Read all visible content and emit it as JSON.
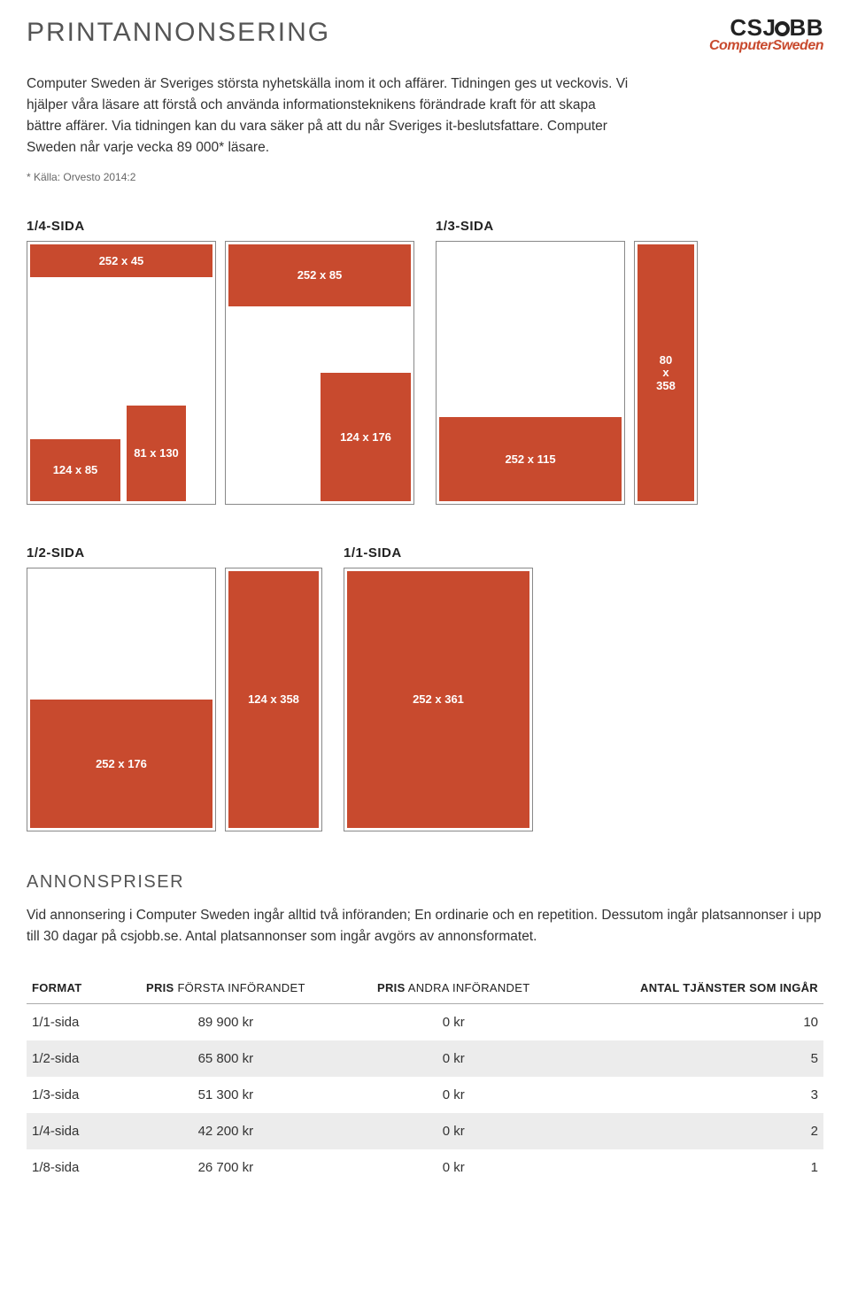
{
  "header": {
    "title": "PRINTANNONSERING",
    "logo_main": "CSJOBB",
    "logo_sub": "ComputerSweden"
  },
  "intro": {
    "p1": "Computer Sweden är Sveriges största nyhetskälla inom it och affärer. Tidningen ges ut veckovis. Vi hjälper våra läsare att förstå och använda informationsteknikens förändrade kraft för att skapa bättre affärer. Via tidningen kan du vara säker på att du når Sveriges it-beslutsfattare. Computer Sweden når varje vecka 89 000* läsare.",
    "footnote": "* Källa: Orvesto 2014:2"
  },
  "colors": {
    "block": "#c84a2e",
    "panel_border": "#888888",
    "zebra": "#ececec"
  },
  "sections": {
    "s14": {
      "label": "1/4-SIDA"
    },
    "s13": {
      "label": "1/3-SIDA"
    },
    "s12": {
      "label": "1/2-SIDA"
    },
    "s11": {
      "label": "1/1-SIDA"
    }
  },
  "blocks": {
    "b252x45": "252 x 45",
    "b252x85": "252 x 85",
    "b124x85": "124 x 85",
    "b81x130": "81 x 130",
    "b124x176": "124 x 176",
    "b252x115": "252 x 115",
    "b80x358": "80\nx\n358",
    "b252x176": "252 x 176",
    "b124x358": "124 x 358",
    "b252x361": "252 x 361"
  },
  "prices_section": {
    "title": "ANNONSPRISER",
    "desc": "Vid annonsering i Computer Sweden ingår alltid två införanden; En ordinarie och en repetition. Dessutom ingår platsannonser i upp till 30 dagar på csjobb.se. Antal platsannonser som ingår avgörs av annonsformatet."
  },
  "table": {
    "headers": {
      "format_strong": "FORMAT",
      "pris1_strong": "PRIS",
      "pris1_light": " FÖRSTA INFÖRANDET",
      "pris2_strong": "PRIS",
      "pris2_light": " ANDRA INFÖRANDET",
      "antal_strong": "ANTAL TJÄNSTER SOM INGÅR"
    },
    "rows": [
      {
        "format": "1/1-sida",
        "p1": "89 900 kr",
        "p2": "0 kr",
        "n": "10"
      },
      {
        "format": "1/2-sida",
        "p1": "65 800 kr",
        "p2": "0 kr",
        "n": "5"
      },
      {
        "format": "1/3-sida",
        "p1": "51 300 kr",
        "p2": "0 kr",
        "n": "3"
      },
      {
        "format": "1/4-sida",
        "p1": "42 200 kr",
        "p2": "0 kr",
        "n": "2"
      },
      {
        "format": "1/8-sida",
        "p1": "26 700 kr",
        "p2": "0 kr",
        "n": "1"
      }
    ]
  }
}
